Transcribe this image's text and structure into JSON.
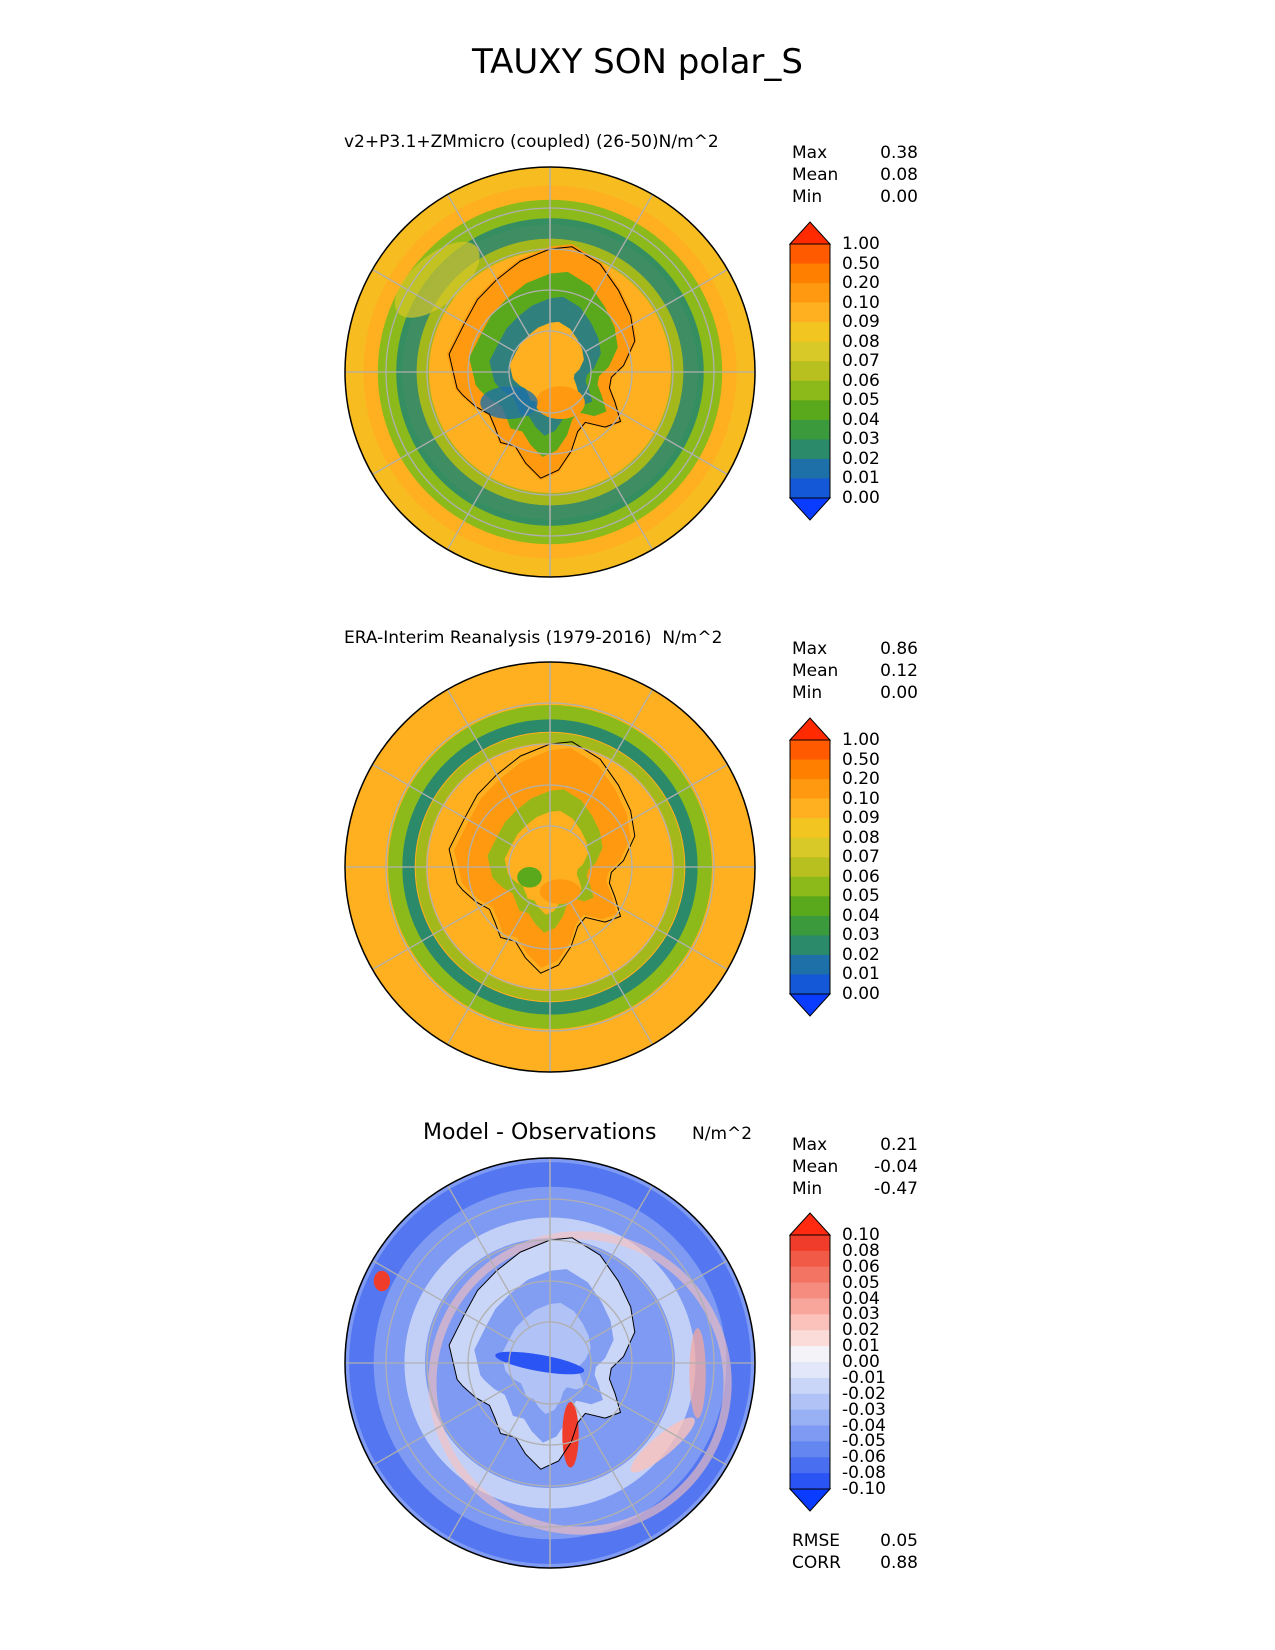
{
  "page_title": "TAUXY SON polar_S",
  "chart_data": [
    {
      "type": "heatmap",
      "projection": "south-polar-stereographic",
      "title": "v2+P3.1+ZMmicro (coupled) (26-50)",
      "units": "N/m^2",
      "stats": [
        {
          "label": "Max",
          "value": "0.38"
        },
        {
          "label": "Mean",
          "value": "0.08"
        },
        {
          "label": "Min",
          "value": "0.00"
        }
      ],
      "colorbar": {
        "levels": [
          "1.00",
          "0.50",
          "0.20",
          "0.10",
          "0.09",
          "0.08",
          "0.07",
          "0.06",
          "0.05",
          "0.04",
          "0.03",
          "0.02",
          "0.01",
          "0.00"
        ],
        "colors": [
          "#ff2a00",
          "#ff5a00",
          "#ff7f00",
          "#ff9a10",
          "#ffb020",
          "#f2c520",
          "#d8c828",
          "#b8c020",
          "#8cba1a",
          "#5aa81c",
          "#3a9a3c",
          "#2a8a6a",
          "#1e70a8",
          "#1458d8",
          "#0a3cff"
        ]
      }
    },
    {
      "type": "heatmap",
      "projection": "south-polar-stereographic",
      "title": "ERA-Interim Reanalysis (1979-2016)",
      "units": "N/m^2",
      "stats": [
        {
          "label": "Max",
          "value": "0.86"
        },
        {
          "label": "Mean",
          "value": "0.12"
        },
        {
          "label": "Min",
          "value": "0.00"
        }
      ],
      "colorbar": {
        "levels": [
          "1.00",
          "0.50",
          "0.20",
          "0.10",
          "0.09",
          "0.08",
          "0.07",
          "0.06",
          "0.05",
          "0.04",
          "0.03",
          "0.02",
          "0.01",
          "0.00"
        ],
        "colors": [
          "#ff2a00",
          "#ff5a00",
          "#ff7f00",
          "#ff9a10",
          "#ffb020",
          "#f2c520",
          "#d8c828",
          "#b8c020",
          "#8cba1a",
          "#5aa81c",
          "#3a9a3c",
          "#2a8a6a",
          "#1e70a8",
          "#1458d8",
          "#0a3cff"
        ]
      }
    },
    {
      "type": "heatmap",
      "projection": "south-polar-stereographic",
      "title": "Model - Observations",
      "units": "N/m^2",
      "stats": [
        {
          "label": "Max",
          "value": "0.21"
        },
        {
          "label": "Mean",
          "value": "-0.04"
        },
        {
          "label": "Min",
          "value": "-0.47"
        }
      ],
      "extra_stats": [
        {
          "label": "RMSE",
          "value": "0.05"
        },
        {
          "label": "CORR",
          "value": "0.88"
        }
      ],
      "colorbar": {
        "levels": [
          "0.10",
          "0.08",
          "0.06",
          "0.05",
          "0.04",
          "0.03",
          "0.02",
          "0.01",
          "0.00",
          "-0.01",
          "-0.02",
          "-0.03",
          "-0.04",
          "-0.05",
          "-0.06",
          "-0.08",
          "-0.10"
        ],
        "colors": [
          "#ff2a10",
          "#f03c2a",
          "#f25a48",
          "#f47464",
          "#f68c80",
          "#f8a69c",
          "#fac2ba",
          "#fcdcd8",
          "#f4f4f8",
          "#e2e8fa",
          "#cad6f8",
          "#b0c2f6",
          "#98b0f4",
          "#7e9af2",
          "#6486f0",
          "#4a6ef0",
          "#2a54f4",
          "#0a3cff"
        ]
      }
    }
  ]
}
